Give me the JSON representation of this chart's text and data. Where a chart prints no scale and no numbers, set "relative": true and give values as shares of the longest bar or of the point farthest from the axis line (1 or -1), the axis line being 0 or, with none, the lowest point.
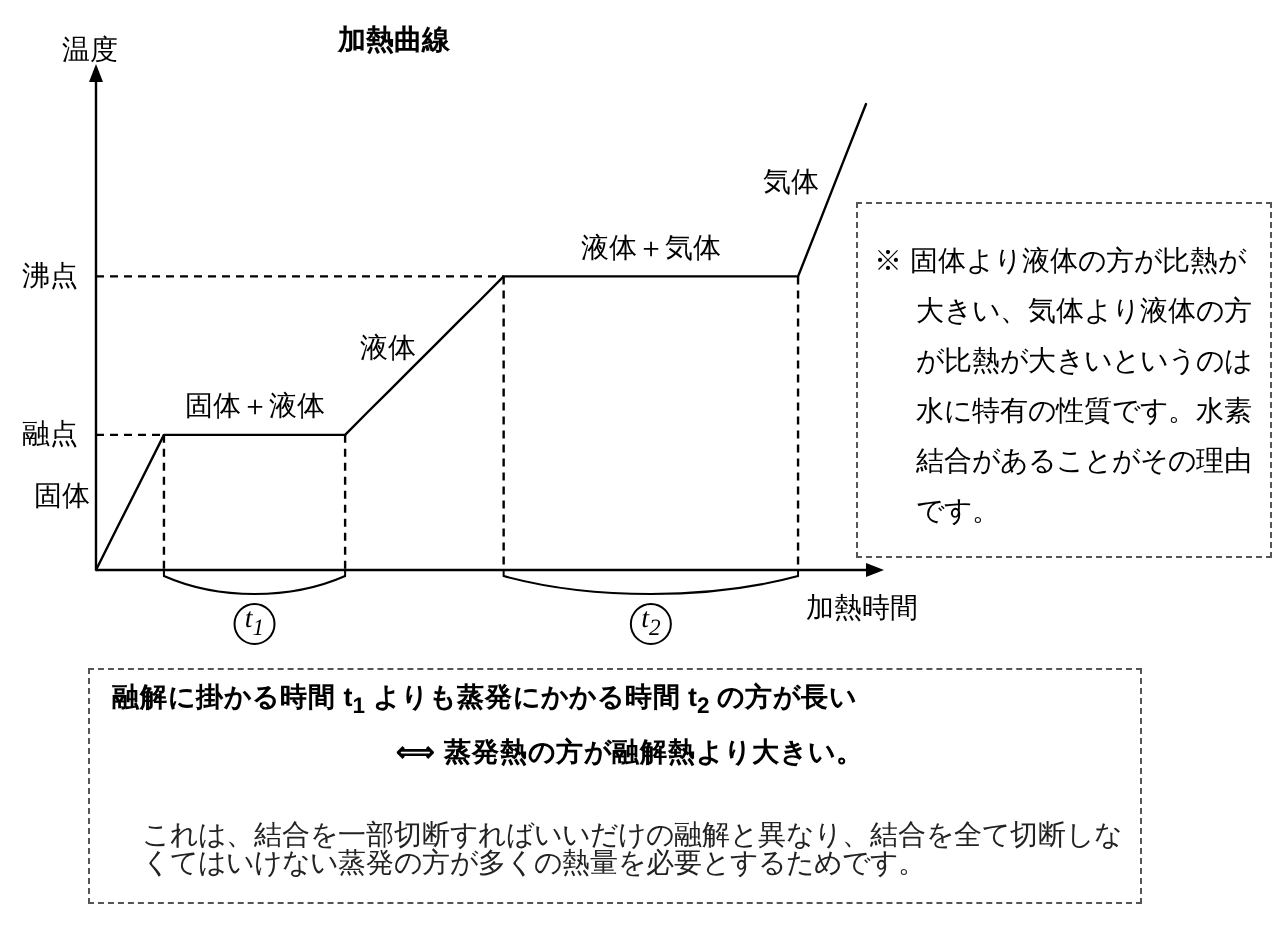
{
  "chart_data": {
    "type": "line",
    "title": "加熱曲線",
    "xlabel": "加熱時間",
    "ylabel": "温度",
    "relative": true,
    "categories": [
      null,
      null,
      null,
      null,
      null,
      null,
      null,
      null,
      null,
      null,
      null,
      null,
      null,
      null,
      null,
      null,
      null,
      null,
      null,
      null,
      null,
      null,
      null,
      null,
      null,
      null,
      null,
      null,
      null,
      null,
      null,
      null,
      null,
      null,
      null
    ],
    "series": [
      {
        "color": "#000000",
        "values": [
          0,
          0.097,
          0.193,
          0.29,
          0.29,
          0.29,
          0.29,
          0.29,
          0.29,
          0.29,
          0.29,
          0.29,
          0.339,
          0.387,
          0.436,
          0.484,
          0.533,
          0.581,
          0.63,
          0.63,
          0.63,
          0.63,
          0.63,
          0.63,
          0.63,
          0.63,
          0.63,
          0.63,
          0.63,
          0.63,
          0.63,
          0.63,
          0.753,
          0.877,
          1
        ]
      }
    ],
    "ref_lines": [
      {
        "axis": "y",
        "value": 0.29,
        "label": "融点",
        "color": "#000000",
        "line_style": "dashed"
      },
      {
        "axis": "y",
        "value": 0.63,
        "label": "沸点",
        "color": "#000000",
        "line_style": "dashed"
      }
    ],
    "annotations": [
      "固体",
      "固体＋液体",
      "液体",
      "液体＋気体",
      "気体",
      "t$_{1}$",
      "t$_{2}$",
      "※ 固体より液体の方が比熱が大きい、気体より液体の方が比熱が大きいというのは水に特有の性質です。水素結合があることがその理由です。",
      "融解に掛かる時間 t$_{1}$ よりも蒸発にかかる時間 t$_{2}$ の方が長い",
      "⟺ 蒸発熱の方が融解熱より大きい。",
      "これは、結合を一部切断すればいいだけの融解と異なり、結合を全て切断しなくてはいけない蒸発の方が多くの熱量を必要とするためです。"
    ]
  }
}
